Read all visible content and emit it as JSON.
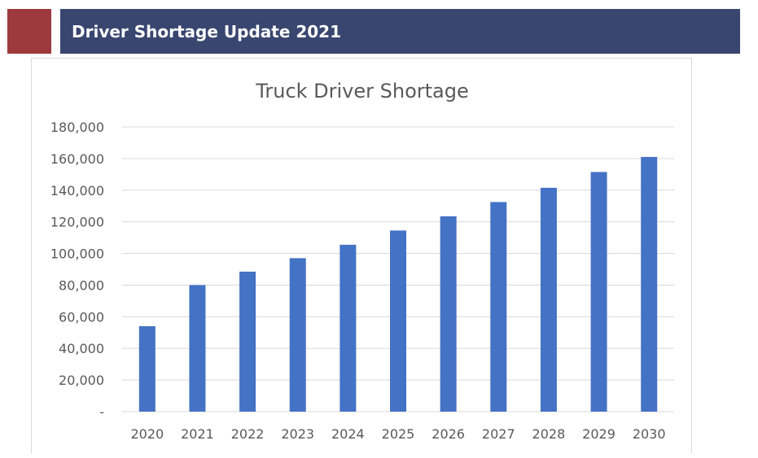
{
  "header": {
    "title": "Driver Shortage Update 2021",
    "bar_color": "#394670",
    "accent_color": "#9c3a3e"
  },
  "chart_data": {
    "type": "bar",
    "title": "Truck Driver Shortage",
    "xlabel": "",
    "ylabel": "",
    "categories": [
      "2020",
      "2021",
      "2022",
      "2023",
      "2024",
      "2025",
      "2026",
      "2027",
      "2028",
      "2029",
      "2030"
    ],
    "values": [
      54000,
      80000,
      88500,
      97000,
      105500,
      114500,
      123500,
      132500,
      141500,
      151500,
      161000
    ],
    "ylim": [
      0,
      180000
    ],
    "y_ticks": [
      0,
      20000,
      40000,
      60000,
      80000,
      100000,
      120000,
      140000,
      160000,
      180000
    ],
    "y_tick_labels": [
      "-",
      "20,000",
      "40,000",
      "60,000",
      "80,000",
      "100,000",
      "120,000",
      "140,000",
      "160,000",
      "180,000"
    ],
    "grid": true,
    "legend": "none",
    "bar_color": "#4472c4"
  }
}
